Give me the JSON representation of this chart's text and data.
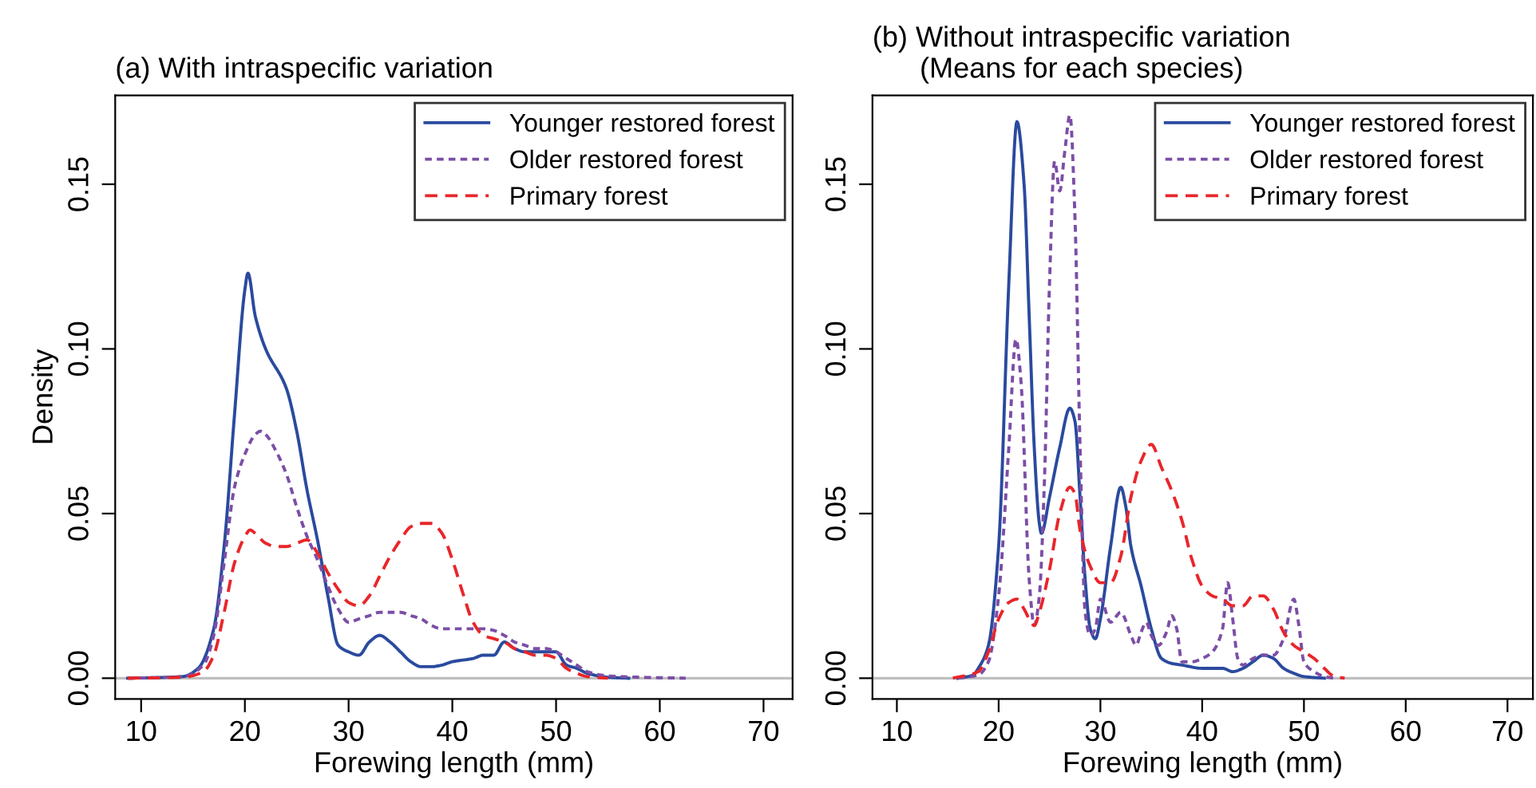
{
  "chart_data": [
    {
      "type": "line",
      "title": "(a) With intraspecific variation",
      "xlabel": "Forewing length (mm)",
      "ylabel": "Density",
      "xlim": [
        7.5,
        72.8
      ],
      "ylim": [
        -0.0063,
        0.177
      ],
      "xticks": [
        10,
        20,
        30,
        40,
        50,
        60,
        70
      ],
      "yticks": [
        {
          "value": 0,
          "label": "0.00"
        },
        {
          "value": 0.05,
          "label": "0.05"
        },
        {
          "value": 0.1,
          "label": "0.10"
        },
        {
          "value": 0.15,
          "label": "0.15"
        }
      ],
      "grid": false,
      "legend": "top right",
      "marker": "none",
      "ref_lines": [
        {
          "axis": "y",
          "value": 0,
          "color": "#bebebe"
        }
      ],
      "series": [
        {
          "name": "Younger restored forest",
          "color": "#2a4a9e",
          "line_style": "solid",
          "x": [
            8.7,
            14,
            15.5,
            17,
            18,
            19,
            20,
            20.3,
            21,
            22,
            24,
            25,
            26,
            27,
            28,
            29,
            30,
            31,
            32,
            33,
            34,
            35,
            36,
            37,
            38,
            39,
            40,
            42,
            43,
            44,
            45,
            46,
            47,
            48,
            49,
            50,
            51,
            52,
            53,
            55,
            57
          ],
          "values": [
            0,
            0.0005,
            0.003,
            0.015,
            0.04,
            0.08,
            0.118,
            0.123,
            0.11,
            0.1,
            0.088,
            0.075,
            0.057,
            0.042,
            0.025,
            0.01,
            0.008,
            0.007,
            0.011,
            0.013,
            0.011,
            0.008,
            0.005,
            0.0035,
            0.0035,
            0.004,
            0.005,
            0.006,
            0.007,
            0.007,
            0.011,
            0.009,
            0.008,
            0.008,
            0.008,
            0.008,
            0.004,
            0.003,
            0.0015,
            0.0003,
            0
          ]
        },
        {
          "name": "Older restored forest",
          "color": "#7b4ea6",
          "line_style": "dotted",
          "x": [
            8.7,
            14,
            16,
            17,
            18,
            19,
            20,
            21,
            21.5,
            22,
            23,
            24,
            25,
            26,
            27,
            28,
            29,
            30,
            31,
            32,
            33,
            34,
            35,
            36,
            37,
            38,
            39,
            40,
            41,
            42,
            43,
            44,
            45,
            46,
            47,
            48,
            49,
            50,
            51,
            52,
            53,
            55,
            58,
            62.5
          ],
          "values": [
            0,
            0.0005,
            0.004,
            0.013,
            0.035,
            0.058,
            0.068,
            0.074,
            0.075,
            0.074,
            0.069,
            0.062,
            0.052,
            0.043,
            0.036,
            0.028,
            0.021,
            0.017,
            0.018,
            0.019,
            0.02,
            0.02,
            0.02,
            0.019,
            0.018,
            0.016,
            0.015,
            0.015,
            0.015,
            0.015,
            0.015,
            0.0145,
            0.013,
            0.011,
            0.01,
            0.009,
            0.009,
            0.008,
            0.006,
            0.004,
            0.002,
            0.0007,
            0.0003,
            0
          ]
        },
        {
          "name": "Primary forest",
          "color": "#e8262a",
          "line_style": "dashed",
          "x": [
            8.7,
            14,
            16,
            17,
            18,
            19,
            20,
            20.5,
            21,
            22,
            23,
            24,
            25,
            26,
            27,
            28,
            29,
            30,
            31,
            32,
            33,
            34,
            35,
            36,
            37,
            38,
            39,
            40,
            41,
            42,
            43,
            44,
            45,
            46,
            47,
            48,
            49,
            50,
            51,
            52,
            53,
            55
          ],
          "values": [
            0,
            0.0003,
            0.002,
            0.007,
            0.02,
            0.035,
            0.043,
            0.045,
            0.044,
            0.041,
            0.04,
            0.04,
            0.041,
            0.042,
            0.038,
            0.032,
            0.027,
            0.023,
            0.022,
            0.025,
            0.031,
            0.037,
            0.042,
            0.046,
            0.047,
            0.047,
            0.044,
            0.036,
            0.026,
            0.017,
            0.013,
            0.012,
            0.011,
            0.009,
            0.008,
            0.007,
            0.007,
            0.006,
            0.003,
            0.0015,
            0.0005,
            0
          ]
        }
      ]
    },
    {
      "type": "line",
      "title": "(b) Without intraspecific variation\n(Means for each species)",
      "xlabel": "Forewing length (mm)",
      "xlim": [
        7.6,
        72.5
      ],
      "ylim": [
        -0.0063,
        0.177
      ],
      "xticks": [
        10,
        20,
        30,
        40,
        50,
        60,
        70
      ],
      "yticks": [
        {
          "value": 0,
          "label": "0.00"
        },
        {
          "value": 0.05,
          "label": "0.05"
        },
        {
          "value": 0.1,
          "label": "0.10"
        },
        {
          "value": 0.15,
          "label": "0.15"
        }
      ],
      "grid": false,
      "legend": "top right",
      "marker": "none",
      "ref_lines": [
        {
          "axis": "y",
          "value": 0,
          "color": "#bebebe"
        }
      ],
      "series": [
        {
          "name": "Younger restored forest",
          "color": "#2a4a9e",
          "line_style": "solid",
          "x": [
            16,
            17.5,
            18,
            19,
            20,
            21,
            21.8,
            22.5,
            23,
            23.5,
            24,
            24.2,
            25,
            26,
            27,
            27.5,
            28,
            28.5,
            29,
            29.5,
            30,
            31,
            32,
            32.5,
            33,
            34,
            35,
            36,
            37,
            38,
            40,
            42,
            43,
            44,
            45,
            46,
            47,
            48,
            49,
            50,
            52
          ],
          "values": [
            0,
            0.001,
            0.003,
            0.01,
            0.04,
            0.12,
            0.169,
            0.15,
            0.11,
            0.07,
            0.047,
            0.044,
            0.055,
            0.07,
            0.082,
            0.078,
            0.055,
            0.03,
            0.015,
            0.012,
            0.018,
            0.04,
            0.058,
            0.052,
            0.04,
            0.028,
            0.015,
            0.006,
            0.0045,
            0.004,
            0.003,
            0.003,
            0.002,
            0.003,
            0.005,
            0.007,
            0.006,
            0.003,
            0.0015,
            0.0005,
            0
          ]
        },
        {
          "name": "Older restored forest",
          "color": "#7b4ea6",
          "line_style": "dotted",
          "x": [
            16,
            18,
            19,
            20,
            21,
            21.7,
            22.2,
            23,
            23.5,
            24,
            24.5,
            25,
            25.5,
            26,
            26.5,
            27,
            27.5,
            28,
            28.5,
            29,
            29.5,
            30,
            31,
            32,
            33,
            33.5,
            34,
            34.5,
            35,
            35.7,
            36.5,
            37,
            37.5,
            38,
            39,
            40,
            41,
            42,
            42.5,
            43,
            43.5,
            44,
            45,
            46,
            47,
            48,
            49,
            49.5,
            50,
            51,
            52,
            53
          ],
          "values": [
            0,
            0.001,
            0.005,
            0.025,
            0.07,
            0.103,
            0.09,
            0.03,
            0.016,
            0.025,
            0.06,
            0.12,
            0.157,
            0.148,
            0.16,
            0.171,
            0.14,
            0.07,
            0.02,
            0.013,
            0.015,
            0.024,
            0.017,
            0.02,
            0.013,
            0.01,
            0.014,
            0.017,
            0.013,
            0.01,
            0.014,
            0.019,
            0.015,
            0.005,
            0.005,
            0.006,
            0.008,
            0.015,
            0.029,
            0.018,
            0.006,
            0.004,
            0.006,
            0.007,
            0.007,
            0.012,
            0.024,
            0.016,
            0.005,
            0.002,
            0.0005,
            0
          ]
        },
        {
          "name": "Primary forest",
          "color": "#e8262a",
          "line_style": "dashed",
          "x": [
            15.5,
            18,
            19,
            20,
            21,
            21.8,
            22.5,
            23,
            23.5,
            24,
            25,
            26,
            27,
            27.5,
            28,
            29,
            30,
            31,
            32,
            33,
            34,
            35,
            36,
            37,
            38,
            39,
            40,
            41,
            42,
            43,
            44,
            45,
            46,
            47,
            48,
            49,
            50,
            51,
            52,
            53,
            54
          ],
          "values": [
            0,
            0.002,
            0.008,
            0.018,
            0.023,
            0.024,
            0.021,
            0.018,
            0.016,
            0.02,
            0.033,
            0.05,
            0.058,
            0.056,
            0.045,
            0.034,
            0.029,
            0.029,
            0.037,
            0.055,
            0.066,
            0.071,
            0.064,
            0.057,
            0.048,
            0.036,
            0.028,
            0.025,
            0.024,
            0.022,
            0.022,
            0.025,
            0.025,
            0.021,
            0.014,
            0.01,
            0.008,
            0.006,
            0.003,
            0.0005,
            0
          ]
        }
      ]
    }
  ]
}
